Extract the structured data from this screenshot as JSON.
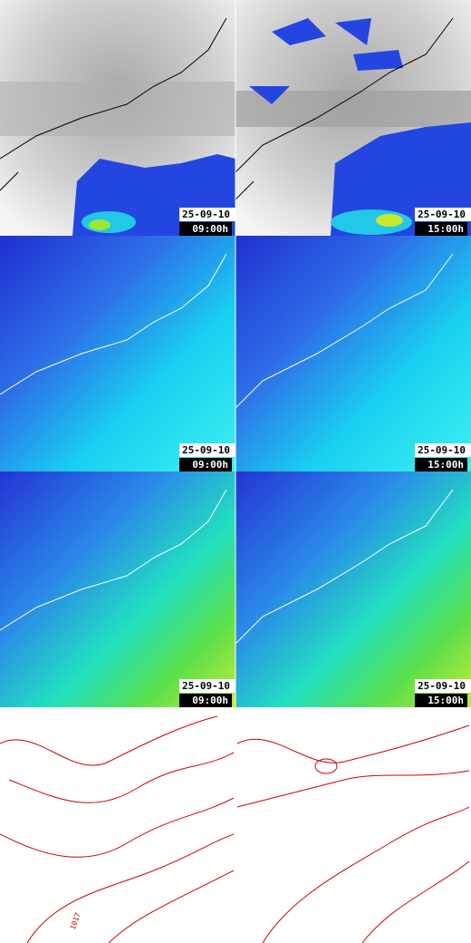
{
  "rows": [
    {
      "left": {
        "date": "25-09-10",
        "time": "09:00h"
      },
      "right": {
        "date": "25-09-10",
        "time": "15:00h"
      }
    },
    {
      "left": {
        "date": "25-09-10",
        "time": "09:00h"
      },
      "right": {
        "date": "25-09-10",
        "time": "15:00h"
      }
    },
    {
      "left": {
        "date": "25-09-10",
        "time": "09:00h"
      },
      "right": {
        "date": "25-09-10",
        "time": "15:00h"
      }
    }
  ],
  "contour_label": "1017"
}
